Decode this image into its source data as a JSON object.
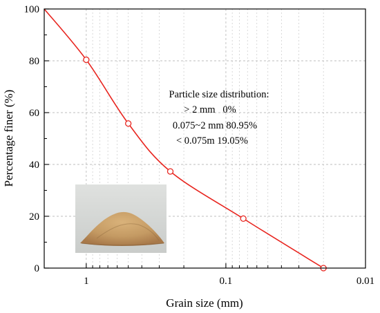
{
  "chart_data": {
    "type": "line",
    "xlabel": "Grain size (mm)",
    "ylabel": "Percentage finer (%)",
    "x_scale": "log",
    "x_reversed": true,
    "xlim": [
      2,
      0.01
    ],
    "ylim": [
      0,
      100
    ],
    "x_ticks": [
      1,
      0.1,
      0.01
    ],
    "x_tick_labels": [
      "1",
      "0.1",
      "0.01"
    ],
    "y_ticks": [
      0,
      20,
      40,
      60,
      80,
      100
    ],
    "y_tick_labels": [
      "0",
      "20",
      "40",
      "60",
      "80",
      "100"
    ],
    "grid": true,
    "series": [
      {
        "color": "#e8251f",
        "x": [
          2,
          1,
          0.5,
          0.25,
          0.075,
          0.02
        ],
        "y": [
          100,
          80.4,
          55.8,
          37.3,
          19.1,
          0
        ],
        "markers": "hollow-circle",
        "marker_x": [
          1,
          0.5,
          0.25,
          0.075,
          0.02
        ],
        "marker_y": [
          80.4,
          55.8,
          37.3,
          19.1,
          0
        ]
      }
    ],
    "annotation": {
      "lines": [
        "Particle size distribution:",
        "> 2 mm   0%",
        "0.075~2 mm 80.95%",
        "< 0.075m 19.05%"
      ]
    },
    "inset_image": "sand-pile-photo"
  }
}
